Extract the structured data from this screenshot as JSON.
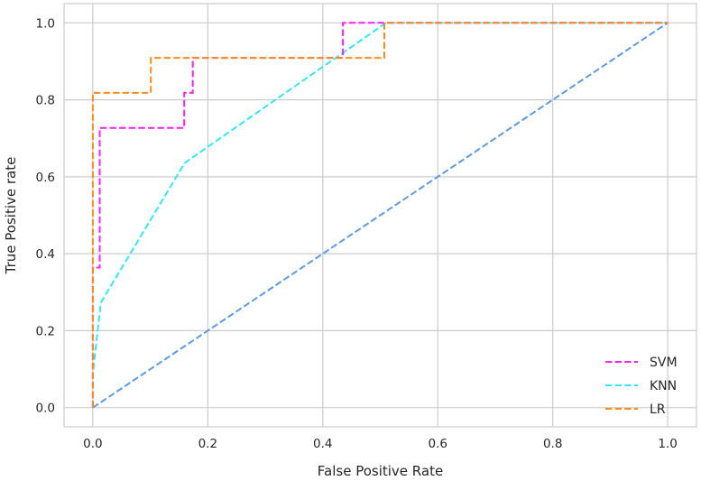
{
  "chart_data": {
    "type": "line",
    "title": "",
    "xlabel": "False Positive Rate",
    "ylabel": "True Positive rate",
    "xlim": [
      -0.05,
      1.05
    ],
    "ylim": [
      -0.05,
      1.05
    ],
    "xticks": [
      "0.0",
      "0.2",
      "0.4",
      "0.6",
      "0.8",
      "1.0"
    ],
    "yticks": [
      "0.0",
      "0.2",
      "0.4",
      "0.6",
      "0.8",
      "1.0"
    ],
    "grid": true,
    "legend_position": "bottom-right",
    "series": [
      {
        "name": "SVM",
        "color": "#ff1fff",
        "style": "dashed",
        "x": [
          0.0,
          0.0,
          0.012,
          0.012,
          0.018,
          0.018,
          0.159,
          0.159,
          0.174,
          0.174,
          0.435,
          0.435,
          0.5,
          1.0
        ],
        "y": [
          0.0,
          0.364,
          0.364,
          0.727,
          0.727,
          0.727,
          0.727,
          0.818,
          0.818,
          0.909,
          0.909,
          1.0,
          1.0,
          1.0
        ]
      },
      {
        "name": "KNN",
        "color": "#33e6ff",
        "style": "dashed",
        "x": [
          0.0,
          0.0,
          0.014,
          0.16,
          0.51,
          1.0
        ],
        "y": [
          0.0,
          0.09,
          0.273,
          0.636,
          1.0,
          1.0
        ]
      },
      {
        "name": "LR",
        "color": "#ff8c1a",
        "style": "dashed",
        "x": [
          0.0,
          0.0,
          0.101,
          0.101,
          0.507,
          0.507,
          1.0
        ],
        "y": [
          0.0,
          0.818,
          0.818,
          0.909,
          0.909,
          1.0,
          1.0
        ]
      },
      {
        "color": "#5b9be6",
        "style": "dashed",
        "x": [
          0.0,
          1.0
        ],
        "y": [
          0.0,
          1.0
        ]
      }
    ]
  }
}
